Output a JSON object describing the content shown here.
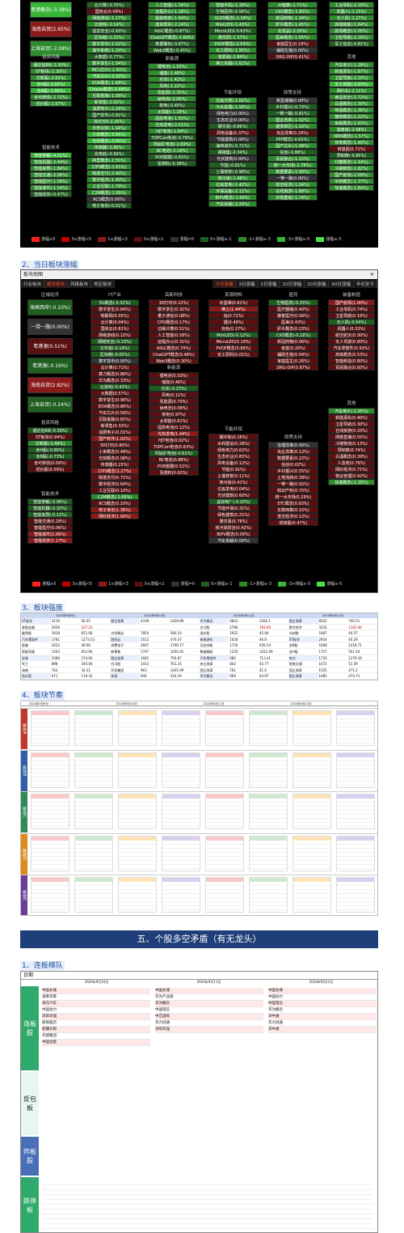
{
  "panel1": {
    "col_a": [
      "粤港概念(-3.38%)",
      "海南自贸(2.65%)",
      "上海自贸(-2.08%)"
    ],
    "group_a2": "投资风格",
    "col_a2": [
      "通达信88(-2.30%)",
      "ST板块(-2.30%)",
      "次新股(-2.63%)",
      "含H股(-3.65%)",
      "含B股(-3.66%)",
      "含可转债(-2.72%)",
      "低价股(-2.57%)"
    ],
    "group_a3": "智能技术",
    "col_a3": [
      "智能穿戴(-4.01%)",
      "智能机器(-2.44%)",
      "智能家居(-1.84%)",
      "智能交通(-2.06%)",
      "智能医疗(-1.09%)",
      "智能城市(-1.54%)",
      "智能政务(-0.47%)"
    ],
    "col_b": [
      "云计算(-0.70%)",
      "国资云(0.09%)",
      "网络游戏(-1.17%)",
      "云游戏(-2.14%)",
      "信息安全(-0.93%)",
      "区块链(-1.22%)",
      "数字货币(-1.02%)",
      "操作系统(-1.20%)",
      "大数据(-0.77%)",
      "数字孪生(-1.34%)",
      "MCU芯片(-1.93%)",
      "汽车芯片(-3.32%)",
      "EDA概念(-1.68%)",
      "Chiplet概念(-3.48%)",
      "互联金融(-1.09%)",
      "新零售(-2.02%)",
      "消费电子(-2.24%)",
      "国产软件(-0.81%)",
      "3D打印(-2.26%)",
      "手势识别(-1.94%)",
      "小米概念(-3.45%)",
      "光伏概念(-3.66%)",
      "传感器(-2.86%)",
      "充电桩(-0.99%)",
      "阿里概念(-1.55%)",
      "CIPS概念(-1.65%)",
      "跨境支付(-2.40%)",
      "数字经济(-1.40%)",
      "工业互联(-1.79%)",
      "C2M概念(-1.59%)",
      "RCS概念(0.00%)",
      "电子身份(-0.01%)"
    ],
    "col_c": [
      "人工智能(-1.34%)",
      "远程办公(-1.28%)",
      "超级电容(-1.64%)",
      "虚拟现实(-2.24%)",
      "AIGC概念(-0.87%)",
      "ChatGPT概念(-1.69%)",
      "数据确权(-0.87%)",
      "Web3概念(-0.45%)"
    ],
    "group_c2": "新能源",
    "col_c2": [
      "锂电池(-1.55%)",
      "储能(-1.48%)",
      "光伏(-1.42%)",
      "风电(-1.22%)",
      "氢能源(-2.35%)",
      "钠电池(-2.06%)",
      "核电(-0.45%)",
      "太阳能(-1.18%)",
      "固态电池(-1.50%)",
      "光热发电(-2.51%)",
      "HJT电池(-1.84%)",
      "TOPCon电池(-0.79%)",
      "钙钛矿电池(-1.69%)",
      "BC电池(-1.16%)",
      "POE胶膜(-0.65%)",
      "氢燃料(-0.38%)"
    ],
    "col_d": [
      "智能手机(-1.39%)",
      "生物医药(-0.56%)",
      "OLED概念(-1.34%)",
      "MiniLED(-1.43%)",
      "MicroLED(-0.63%)",
      "柔性屏(-1.37%)",
      "PVDF概念(-2.54%)",
      "化工原料(-1.95%)",
      "有机硅(-1.84%)",
      "稀土永磁(-1.62%)"
    ],
    "group_d2": "节能环保",
    "col_d2": [
      "垃圾分类(-1.61%)",
      "污水处理(-1.56%)",
      "绿色电力(0.00%)",
      "生态农业(0.00%)",
      "碳交易(-0.86%)",
      "风电设备(0.37%)",
      "节能建筑(0.00%)",
      "海绵城市(-0.71%)",
      "碳捕集(-0.34%)",
      "光伏建筑(0.00%)",
      "节能(-0.81%)",
      "土壤修复(-0.98%)",
      "核污染(-1.48%)",
      "垃圾发电(-1.42%)",
      "环保设备(-2.11%)",
      "BIPV概念(-1.66%)",
      "汽车拆解(-2.29%)"
    ],
    "col_e": [
      "大健康(-1.71%)",
      "CXO概念(-1.80%)",
      "新冠药物(-1.34%)",
      "肝炎概念(-1.45%)",
      "化妆品(-2.16%)",
      "医美概念(-1.55%)",
      "家庭医生(0.19%)",
      "辅助生殖(0.00%)",
      "DRG-DIP(0.41%)"
    ],
    "group_e2": "政策支持",
    "col_e2": [
      "新型城镇(0.00%)",
      "乡村振兴(-0.73%)",
      "一带一路(-0.81%)",
      "国企改革(-1.02%)",
      "雄安新区(-1.10%)",
      "央企改革(0.29%)",
      "PPP模式(-0.63%)",
      "国产芯片(-1.08%)",
      "信创(-0.88%)",
      "军民融合(-1.12%)",
      "统一大市场(-1.78%)",
      "数据要素(-1.00%)",
      "一带一路(0.00%)",
      "低空经济(-1.04%)",
      "在线旅游(-1.88%)",
      "并购重组(-1.74%)"
    ],
    "col_f": [
      "工业母机(-2.18%)",
      "机器人(-1.15%)",
      "无人机(-1.27%)",
      "高端装备(-1.64%)",
      "航母概念(-1.05%)",
      "卫星导航(-2.16%)",
      "军工信息(-0.81%)"
    ],
    "group_f2": "其他",
    "col_f2": [
      "汽车电子(-1.28%)",
      "新能源车(-1.87%)",
      "卫星导航(-2.20%)",
      "无人驾驶(-3.93%)",
      "网约车(-2.12%)",
      "食品安全(-1.72%)",
      "白酒概念(-1.30%)",
      "啤酒概念(-1.36%)",
      "猪肉概念(-1.22%)",
      "免税概念(-1.63%)",
      "独角兽(-2.08%)",
      "NMN概念(-1.57%)",
      "体育概念(-1.40%)",
      "转基因(0.71%)",
      "预制菜(-0.85%)",
      "代糖概念(-1.44%)",
      "冷链物流(-1.82%)",
      "国产航母(-2.09%)",
      "中药概念(-1.37%)",
      "快递概念(-1.84%)"
    ],
    "legend": [
      "涨幅≥5",
      "3≤涨幅<5",
      "1≤涨幅<3",
      "0≤涨幅<1",
      "涨幅=0",
      "0>涨幅≥-1",
      "-1>涨幅≥-3",
      "-3>涨幅≥-5",
      "涨幅≤-5"
    ]
  },
  "section2": {
    "title": "2、当日板块涨幅"
  },
  "panel2": {
    "window_title": "板块地图",
    "tabs_left": [
      "行业板块",
      "概念板块",
      "风格板块",
      "地区板块"
    ],
    "tabs_right": [
      "今日涨幅",
      "3日涨幅",
      "5日涨幅",
      "10日涨幅",
      "20日涨幅",
      "60日涨幅",
      "年初至今"
    ],
    "group_a": "区域经济",
    "col_a": [
      "海峡西岸(-0.10%)",
      "一带一路(0.00%)",
      "粤港澳(0.51%)",
      "粤港澳(-0.16%)",
      "海南自贸(2.82%)",
      "上海自贸(-0.24%)"
    ],
    "group_a2": "投资风格",
    "col_a2": [
      "通达信88(-0.39%)",
      "ST板块(0.94%)",
      "次新股(-1.44%)",
      "含H股(-0.80%)",
      "含B股(-0.73%)",
      "含可转债(0.09%)",
      "低价股(0.59%)"
    ],
    "group_a3": "智能技术",
    "col_a3": [
      "智能穿戴(-0.96%)",
      "智能机器(-0.32%)",
      "智能家居(-0.12%)",
      "智能交通(0.28%)",
      "智能医疗(0.06%)",
      "智能城市(1.06%)",
      "智能政务(1.17%)"
    ],
    "group_b": "IT产业",
    "col_b": [
      "5G概念(-0.32%)",
      "数字孪生(0.84%)",
      "物联网(0.05%)",
      "云计算(0.04%)",
      "国资云(0.81%)",
      "网络游戏(0.10%)",
      "网络安全(-0.33%)",
      "元宇宙(-0.14%)",
      "区块链(-0.05%)",
      "数字货币(0.00%)",
      "云计算(0.71%)",
      "算力概念(0.86%)",
      "华为概念(0.33%)",
      "云游戏(-0.43%)",
      "大数据(0.57%)",
      "数字孪生(0.90%)",
      "EDA概念(0.86%)",
      "汽车芯片(0.59%)",
      "互联金融(0.81%)",
      "新零售(0.33%)",
      "消费电子(0.01%)",
      "国产软件(1.02%)",
      "3D打印(0.80%)",
      "小米概念(0.49%)",
      "光刻概念(0.08%)",
      "传感器(0.25%)",
      "CIPS概念(1.27%)",
      "跨境支付(0.71%)",
      "数字经济(0.64%)",
      "工业互联(0.10%)",
      "C2M概念(-1.00%)",
      "RCS概念(0.10%)",
      "电子身份(1.36%)",
      "网红经济(1.00%)"
    ],
    "group_c": "高新科技",
    "col_c": [
      "3D打印(0.22%)",
      "数字孪生(0.31%)",
      "量子通信(0.08%)",
      "CPO概念(0.17%)",
      "边缘计算(0.51%)",
      "人工智能(0.58%)",
      "远程办公(0.31%)",
      "AIGC概念(0.74%)",
      "ChatGPT概念(0.48%)",
      "Web3概念(0.30%)"
    ],
    "group_c2": "新能源",
    "col_c2": [
      "锂电池(0.03%)",
      "储能(0.46%)",
      "光伏(-0.23%)",
      "风电(0.11%)",
      "氢能源(0.70%)",
      "钠电池(0.09%)",
      "核电(0.97%)",
      "太阳能(0.61%)",
      "固态电池(0.12%)",
      "光热发电(1.44%)",
      "HJT电池(0.02%)",
      "TOPCon电池(0.63%)",
      "钙钛矿电池(-0.61%)",
      "BC电池(0.88%)",
      "POE胶膜(0.52%)",
      "氢燃料(0.02%)"
    ],
    "group_d": "资源材料",
    "col_d": [
      "石墨烯(0.61%)",
      "稀土(1.44%)",
      "钴(0.71%)",
      "锂(0.49%)",
      "有色(0.27%)",
      "MiniLED(-0.12%)",
      "MicroLED(0.19%)",
      "PVDF概念(0.86%)",
      "化工原料(0.01%)"
    ],
    "group_d2": "节能环保",
    "col_d2": [
      "碳中和(0.16%)",
      "水利建设(0.28%)",
      "绿色电力(0.62%)",
      "生态农业(0.65%)",
      "风电设备(0.12%)",
      "节能(0.91%)",
      "土壤修复(0.11%)",
      "核污染(0.41%)",
      "垃圾发电(0.04%)",
      "光伏建筑(0.60%)",
      "虚拟电厂(-0.20%)",
      "节能环保(0.31%)",
      "绿色建筑(0.21%)",
      "碳交易(0.76%)",
      "核污染防治(0.42%)",
      "BIPV概念(0.09%)",
      "汽车拆解(0.00%)"
    ],
    "group_e": "医药",
    "col_e": [
      "生物医药(-0.25%)",
      "医疗器械(0.40%)",
      "康复医疗(0.56%)",
      "医美(0.43%)",
      "肝炎概念(0.23%)",
      "CXO概念(-0.16%)",
      "新冠药物(0.06%)",
      "疫苗(0.20%)",
      "辅助生殖(0.04%)",
      "家庭医生(0.26%)",
      "DRG-DIP(0.97%)"
    ],
    "group_e2": "政策支持",
    "col_e2": [
      "治理改革(0.00%)",
      "央企改革(0.12%)",
      "数据要素(0.22%)",
      "信创(0.02%)",
      "乡村振兴(0.55%)",
      "土地流转(0.39%)",
      "一带一路(0.92%)",
      "知识产权(0.75%)",
      "统一大市场(0.29%)",
      "ETC概念(0.93%)",
      "东数西算(0.15%)",
      "低空经济(0.12%)",
      "债转股(0.47%)"
    ],
    "group_f": "装备制造",
    "col_f": [
      "国产航母(1.00%)",
      "工业母机(0.74%)",
      "卫星导航(0.19%)",
      "无人机(-0.54%)",
      "机器人(0.33%)",
      "航空航天(0.30%)",
      "无人驾驶(0.80%)",
      "汽车零部件(0.93%)",
      "高铁概念(0.53%)",
      "智能制造(0.80%)",
      "军民融合(0.60%)"
    ],
    "group_f2": "其他",
    "col_f2": [
      "汽车电子(-1.05%)",
      "新能源车(0.40%)",
      "卫星导航(0.30%)",
      "在线旅游(0.33%)",
      "网络直播(0.55%)",
      "冷链物流(0.13%)",
      "预制菜(0.74%)",
      "白酒概念(0.39%)",
      "人造肉(0.76%)",
      "网红经济(0.71%)",
      "物业管理(0.42%)",
      "快递概念(-1.35%)"
    ],
    "legend": [
      "涨幅≥5",
      "3≤涨幅<5",
      "1≤涨幅<3",
      "0≤涨幅<1",
      "涨幅=0",
      "0>涨幅≥-1",
      "-1>涨幅≥-3",
      "-3>涨幅≥-5",
      "涨幅≤-5"
    ]
  },
  "section3": {
    "title": "3、板块强度"
  },
  "sheet3": {
    "dates": [
      "2024年9月9日",
      "2024年9月10日",
      "2024年9月11日",
      "2024年9月12日"
    ],
    "rows": [
      [
        "ST板块",
        "3119",
        "56.05",
        "国企改革",
        "4339",
        "1429.89",
        "华为概念",
        "6841",
        "1264.1",
        "国企改革",
        "6022",
        "740.51"
      ],
      [
        "参股金融",
        "2939",
        "227.22",
        "",
        "",
        "",
        "白马股",
        "2766",
        "192.66",
        "数字经济",
        "3232",
        "1162.84"
      ],
      [
        "破净股",
        "1818",
        "651.68",
        "光伏概念",
        "7854",
        "580.14",
        "低价股",
        "1922",
        "45.84",
        "光刻胶",
        "1887",
        "44.57"
      ],
      [
        "汽车零部件",
        "1781",
        "1273.53",
        "国资云",
        "3512",
        "470.37",
        "新能源车",
        "1628",
        "46.8",
        "ST板块",
        "2924",
        "40.29"
      ],
      [
        "医美",
        "1633",
        "46.66",
        "消费电子",
        "2667",
        "1799.17",
        "证金持股",
        "1726",
        "639.14",
        "含B股",
        "1808",
        "1418.71"
      ],
      [
        "智能驾驶",
        "1563",
        "653.84",
        "新零售",
        "1747",
        "1050.45",
        "数据确权",
        "1220",
        "1022.09",
        "含H股",
        "1727",
        "501.04"
      ],
      [
        "证券",
        "1089",
        "274.64",
        "国企改革",
        "1681",
        "793.87",
        "汽车零部件",
        "980",
        "713.41",
        "电力",
        "1720",
        "1379.19"
      ],
      [
        "军工",
        "898",
        "340.06",
        "白马股",
        "1413",
        "761.25",
        "央企改革",
        "842",
        "43.77",
        "智能交通",
        "1672",
        "51.59"
      ],
      [
        "海南",
        "763",
        "34.21",
        "开机集团",
        "963",
        "1405.99",
        "国企改革",
        "761",
        "41.6",
        "国企改革",
        "1505",
        "471.2"
      ],
      [
        "低价股",
        "671",
        "119.32",
        "深圳",
        "944",
        "516.16",
        "华为概念",
        "669",
        "63.67",
        "国企改革",
        "1485",
        "474.71"
      ]
    ]
  },
  "section4": {
    "title": "4、板块节奏"
  },
  "sheet4": {
    "sides": [
      "板块A",
      "板块B",
      "板块C",
      "板块D",
      "板块E"
    ],
    "dates": [
      "2024年9月9日",
      "2024年9月10日",
      "2024年9月11日",
      "2024年9月12日"
    ]
  },
  "banner5": {
    "title": "五、个股多空矛盾（有无龙头）"
  },
  "section51": {
    "title": "1、连板梯队"
  },
  "ladder": {
    "date_label": "日期",
    "dates": [
      "2024年9月10日",
      "2024年9月11日",
      "2024年9月12日"
    ],
    "sides": [
      "连板股",
      "反包板",
      "炸板股",
      "跌停板"
    ],
    "col1": [
      "中国长城",
      "海南华铁",
      "海马汽车",
      "中国动力",
      "深圳华强",
      "丽珠医药",
      "新疆众和",
      "华建集团",
      "中国出版"
    ],
    "col2": [
      "中国长城",
      "华为产业链",
      "华为概念",
      "中国电信",
      "中芯国际",
      "华力创通",
      "深圳华强"
    ],
    "col3": [
      "中国长城",
      "中国动力",
      "中国电信",
      "华为概念",
      "深中通",
      "华力创通",
      "深中通"
    ]
  }
}
